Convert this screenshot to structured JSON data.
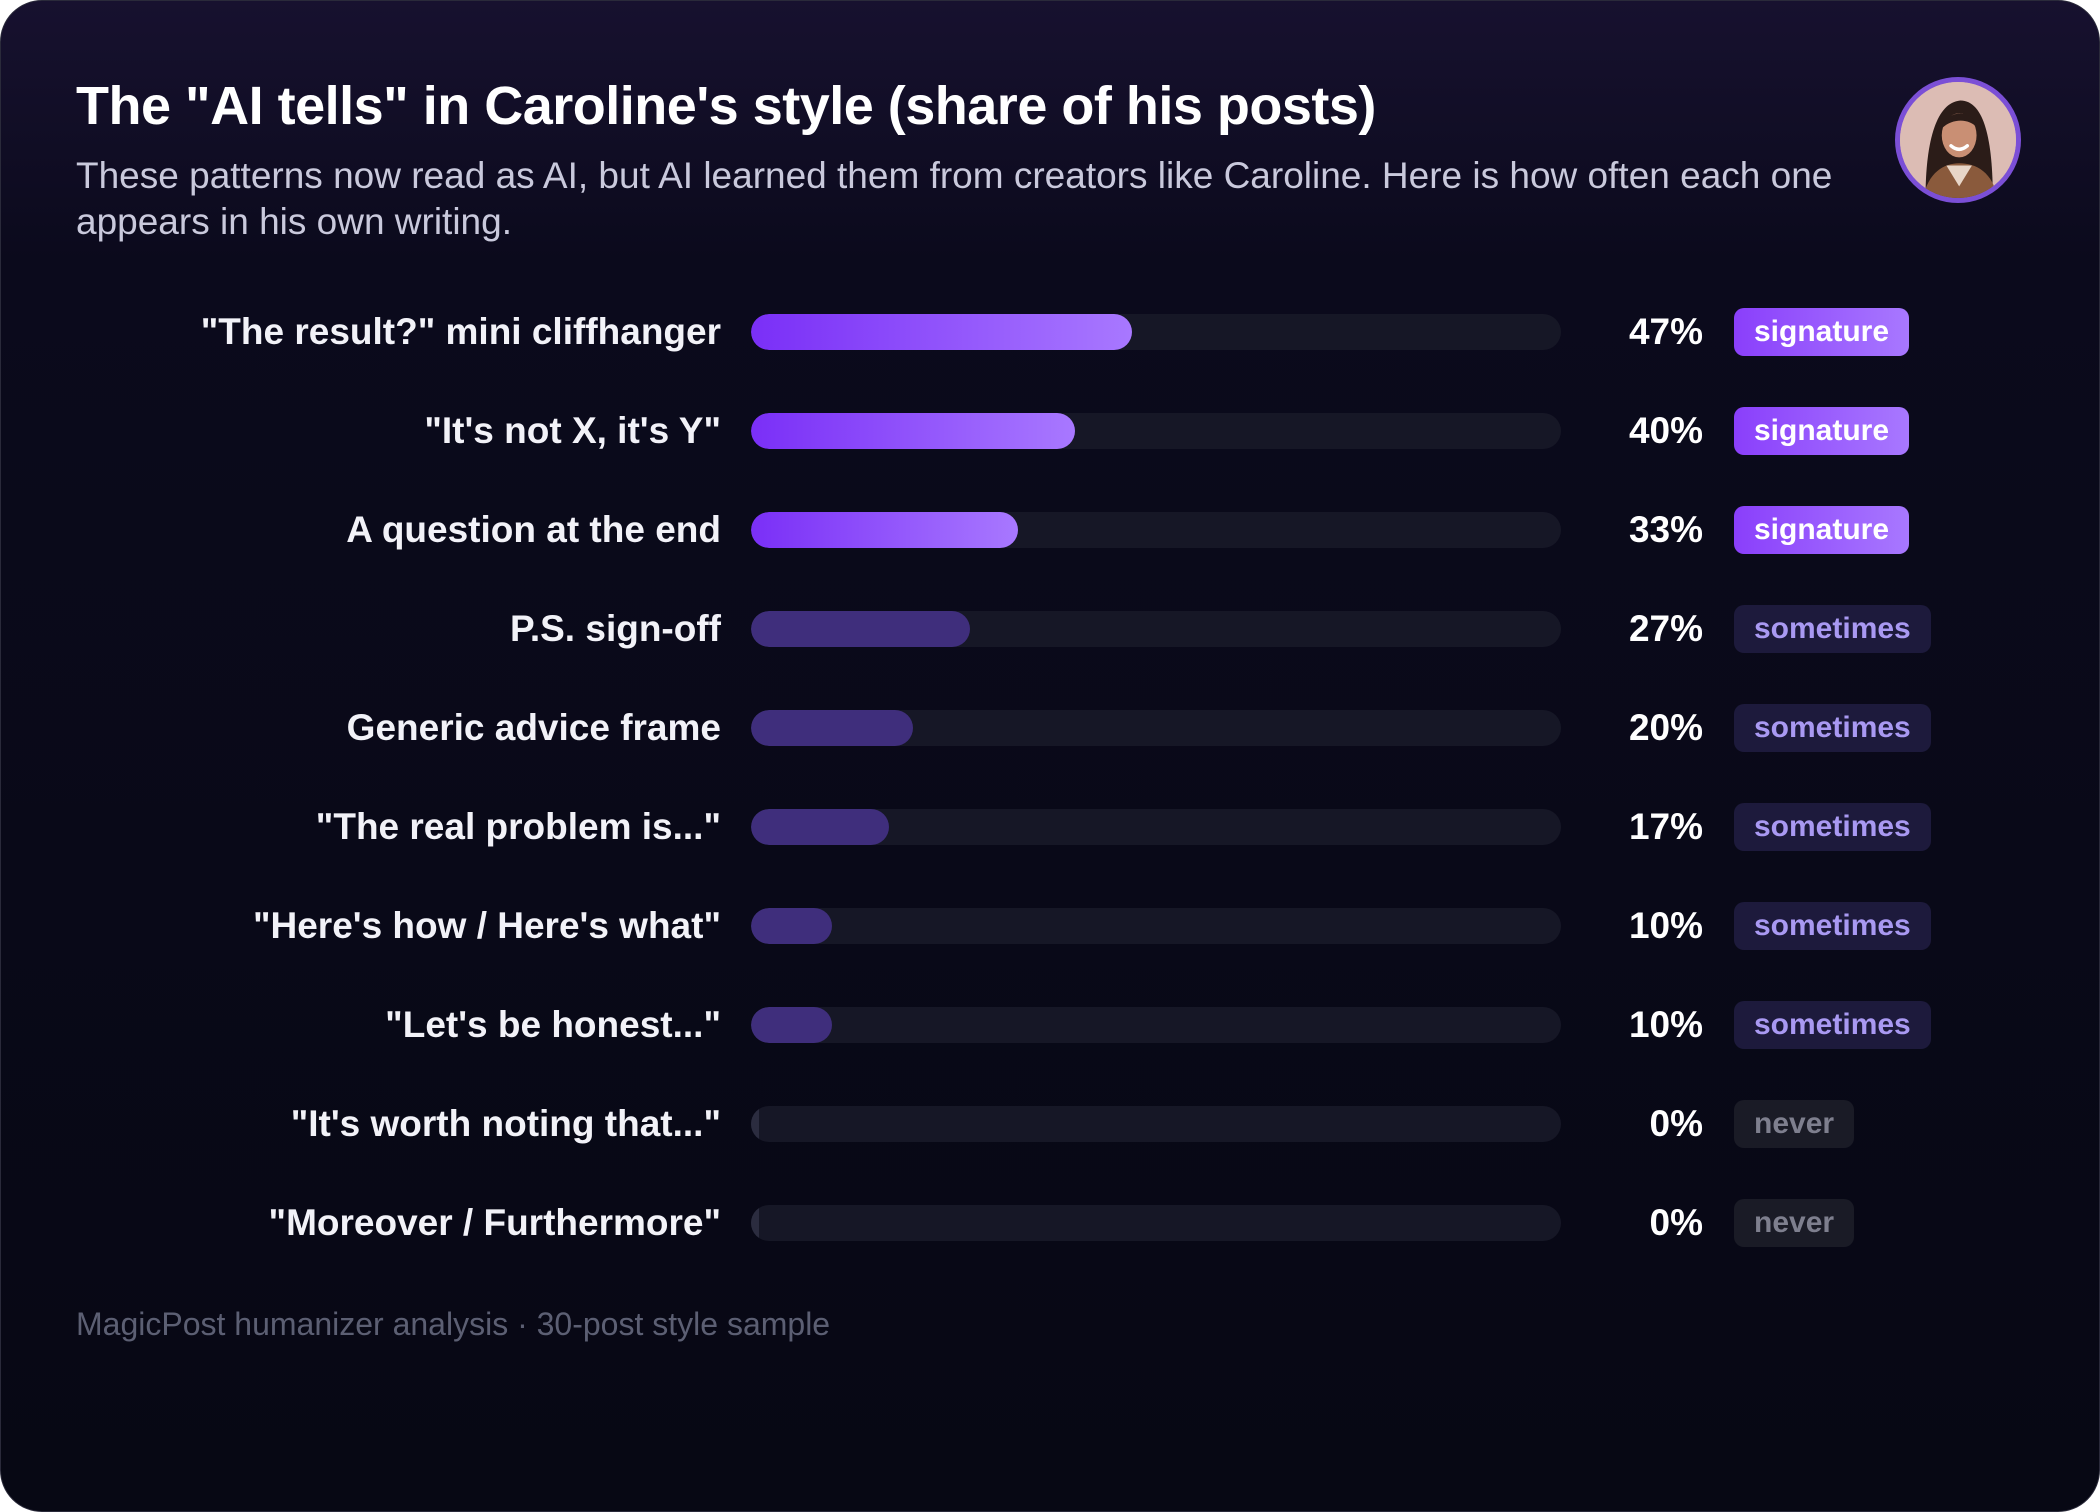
{
  "chart_data": {
    "type": "bar",
    "orientation": "horizontal",
    "title": "The \"AI tells\" in Caroline's style (share of his posts)",
    "subtitle": "These patterns now read as AI, but AI learned them from creators like Caroline. Here is how often each one appears in his own writing.",
    "xlim": [
      0,
      100
    ],
    "grid": false,
    "categories": [
      "\"The result?\" mini cliffhanger",
      "\"It's not X, it's Y\"",
      "A question at the end",
      "P.S. sign-off",
      "Generic advice frame",
      "\"The real problem is...\"",
      "\"Here's how / Here's what\"",
      "\"Let's be honest...\"",
      "\"It's worth noting that...\"",
      "\"Moreover / Furthermore\""
    ],
    "values": [
      47,
      40,
      33,
      27,
      20,
      17,
      10,
      10,
      0,
      0
    ],
    "value_labels": [
      "47%",
      "40%",
      "33%",
      "27%",
      "20%",
      "17%",
      "10%",
      "10%",
      "0%",
      "0%"
    ],
    "tags": [
      "signature",
      "signature",
      "signature",
      "sometimes",
      "sometimes",
      "sometimes",
      "sometimes",
      "sometimes",
      "never",
      "never"
    ],
    "colors": {
      "signature_start": "#7a2ff7",
      "signature_end": "#a878ff",
      "sometimes": "#3f2e7c",
      "never": "#2b2c3f",
      "track": "#161726"
    }
  },
  "footer": "MagicPost humanizer analysis · 30-post style sample",
  "avatar_icon": "person-avatar-icon"
}
